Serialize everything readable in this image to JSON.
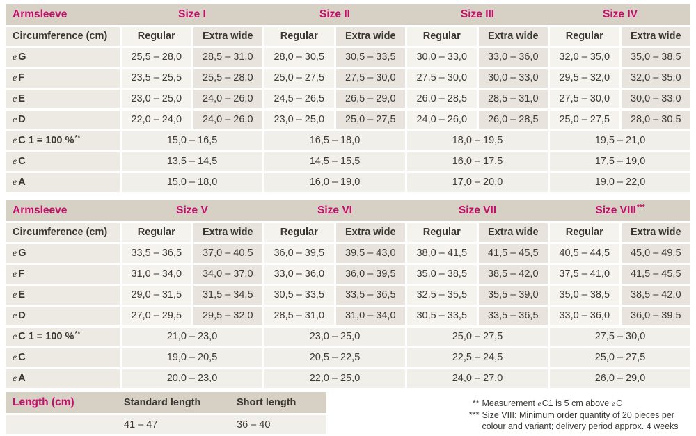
{
  "colors": {
    "accent": "#c30e6b",
    "header_band": "#d7d0c5",
    "label_cell": "#edeae4",
    "regular_cell": "#f5f3ee",
    "extra_wide_cell": "#e8e4dd",
    "merged_cell": "#f1efe9",
    "text": "#3a3733"
  },
  "size_tables": [
    {
      "title": "Armsleeve",
      "row_header": "Circumference (cm)",
      "sub_headers": [
        "Regular",
        "Extra wide"
      ],
      "sizes": [
        {
          "label": "Size I",
          "sup": ""
        },
        {
          "label": "Size II",
          "sup": ""
        },
        {
          "label": "Size III",
          "sup": ""
        },
        {
          "label": "Size IV",
          "sup": ""
        }
      ],
      "rows": [
        {
          "e": "e",
          "label": "G",
          "sup": "",
          "merged": false,
          "values": [
            "25,5 – 28,0",
            "28,5 – 31,0",
            "28,0 – 30,5",
            "30,5 – 33,5",
            "30,0 – 33,0",
            "33,0 – 36,0",
            "32,0 – 35,0",
            "35,0 – 38,5"
          ]
        },
        {
          "e": "e",
          "label": "F",
          "sup": "",
          "merged": false,
          "values": [
            "23,5 – 25,5",
            "25,5 – 28,0",
            "25,0 – 27,5",
            "27,5 – 30,0",
            "27,5 – 30,0",
            "30,0 – 33,0",
            "29,5 – 32,0",
            "32,0 – 35,0"
          ]
        },
        {
          "e": "e",
          "label": "E",
          "sup": "",
          "merged": false,
          "values": [
            "23,0 – 25,0",
            "24,0 – 26,0",
            "24,5 – 26,5",
            "26,5 – 29,0",
            "26,0 – 28,5",
            "28,5 – 31,0",
            "27,5 – 30,0",
            "30,0 – 33,0"
          ]
        },
        {
          "e": "e",
          "label": "D",
          "sup": "",
          "merged": false,
          "values": [
            "22,0 – 24,0",
            "24,0 – 26,0",
            "23,0 – 25,0",
            "25,0 – 27,5",
            "24,0 – 26,0",
            "26,0 – 28,5",
            "25,0 – 27,5",
            "28,0 – 30,5"
          ]
        },
        {
          "e": "e",
          "label": "C 1 = 100 %",
          "sup": "**",
          "merged": true,
          "values": [
            "15,0 – 16,5",
            "16,5 – 18,0",
            "18,0 – 19,5",
            "19,5 – 21,0"
          ]
        },
        {
          "e": "e",
          "label": "C",
          "sup": "",
          "merged": true,
          "values": [
            "13,5 – 14,5",
            "14,5 – 15,5",
            "16,0 – 17,5",
            "17,5 – 19,0"
          ]
        },
        {
          "e": "e",
          "label": "A",
          "sup": "",
          "merged": true,
          "values": [
            "15,0 – 18,0",
            "16,0 – 19,0",
            "17,0 – 20,0",
            "19,0 – 22,0"
          ]
        }
      ]
    },
    {
      "title": "Armsleeve",
      "row_header": "Circumference (cm)",
      "sub_headers": [
        "Regular",
        "Extra wide"
      ],
      "sizes": [
        {
          "label": "Size V",
          "sup": ""
        },
        {
          "label": "Size VI",
          "sup": ""
        },
        {
          "label": "Size VII",
          "sup": ""
        },
        {
          "label": "Size VIII",
          "sup": "***"
        }
      ],
      "rows": [
        {
          "e": "e",
          "label": "G",
          "sup": "",
          "merged": false,
          "values": [
            "33,5 – 36,5",
            "37,0 – 40,5",
            "36,0 – 39,5",
            "39,5 – 43,0",
            "38,0 – 41,5",
            "41,5 – 45,5",
            "40,5 – 44,5",
            "45,0 – 49,5"
          ]
        },
        {
          "e": "e",
          "label": "F",
          "sup": "",
          "merged": false,
          "values": [
            "31,0 – 34,0",
            "34,0 – 37,0",
            "33,0 – 36,0",
            "36,0 – 39,5",
            "35,0 – 38,5",
            "38,5 – 42,0",
            "37,5 – 41,0",
            "41,5 – 45,5"
          ]
        },
        {
          "e": "e",
          "label": "E",
          "sup": "",
          "merged": false,
          "values": [
            "29,0 – 31,5",
            "31,5 – 34,5",
            "30,5 – 33,5",
            "33,5 – 36,5",
            "32,5 – 35,5",
            "35,5 – 39,0",
            "35,0 – 38,5",
            "38,5 – 42,0"
          ]
        },
        {
          "e": "e",
          "label": "D",
          "sup": "",
          "merged": false,
          "values": [
            "27,0 – 29,5",
            "29,5 – 32,0",
            "28,5 – 31,0",
            "31,0 – 34,0",
            "30,5 – 33,5",
            "33,5 – 36,5",
            "33,0 – 36,0",
            "36,0 – 39,5"
          ]
        },
        {
          "e": "e",
          "label": "C 1 = 100 %",
          "sup": "**",
          "merged": true,
          "values": [
            "21,0 – 23,0",
            "23,0 – 25,0",
            "25,0 – 27,5",
            "27,5 – 30,0"
          ]
        },
        {
          "e": "e",
          "label": "C",
          "sup": "",
          "merged": true,
          "values": [
            "19,0 – 20,5",
            "20,5 – 22,5",
            "22,5 – 24,5",
            "25,0 – 27,5"
          ]
        },
        {
          "e": "e",
          "label": "A",
          "sup": "",
          "merged": true,
          "values": [
            "20,0 – 23,0",
            "22,0 – 25,0",
            "24,0 – 27,0",
            "26,0 – 29,0"
          ]
        }
      ]
    }
  ],
  "length_table": {
    "title": "Length (cm)",
    "columns": [
      "Standard length",
      "Short length"
    ],
    "values": [
      "41 – 47",
      "36 – 40"
    ]
  },
  "footnotes": [
    {
      "marker": "**",
      "parts": [
        {
          "t": "Measurement "
        },
        {
          "e": "e"
        },
        {
          "t": "C1 is 5 cm above "
        },
        {
          "e": "e"
        },
        {
          "t": "C"
        }
      ]
    },
    {
      "marker": "***",
      "parts": [
        {
          "t": "Size VIII: Minimum order quantity of 20 pieces per colour and variant; delivery period approx. 4 weeks"
        }
      ]
    }
  ]
}
